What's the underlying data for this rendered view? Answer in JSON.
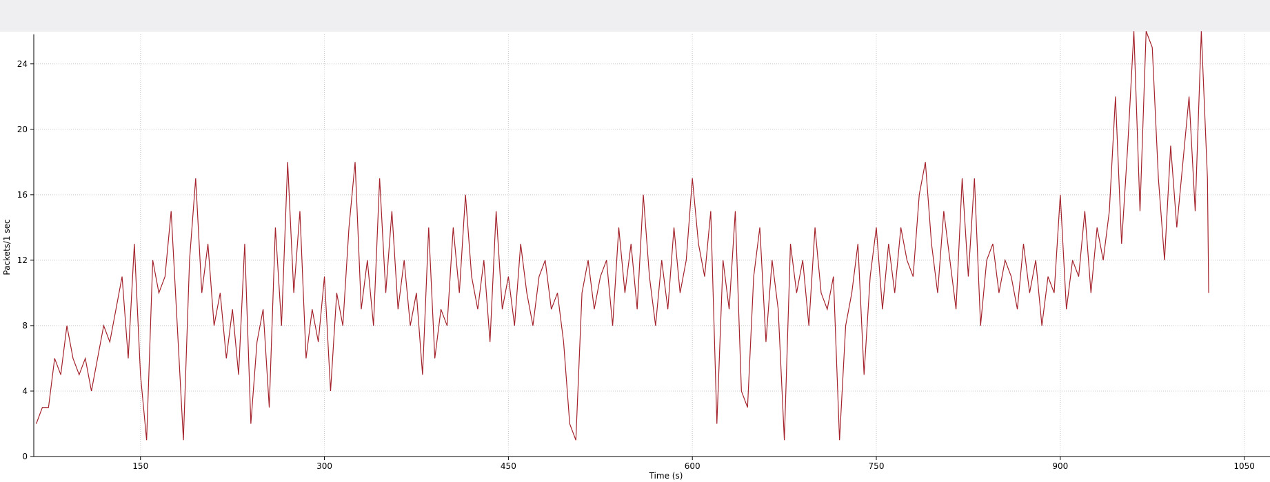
{
  "chart_data": {
    "type": "line",
    "xlabel": "Time (s)",
    "ylabel": "Packets/1 sec",
    "x": [
      65,
      70,
      75,
      80,
      85,
      90,
      95,
      100,
      105,
      110,
      115,
      120,
      125,
      130,
      135,
      140,
      145,
      150,
      155,
      160,
      165,
      170,
      175,
      180,
      185,
      190,
      195,
      200,
      205,
      210,
      215,
      220,
      225,
      230,
      235,
      240,
      245,
      250,
      255,
      260,
      265,
      270,
      275,
      280,
      285,
      290,
      295,
      300,
      305,
      310,
      315,
      320,
      325,
      330,
      335,
      340,
      345,
      350,
      355,
      360,
      365,
      370,
      375,
      380,
      385,
      390,
      395,
      400,
      405,
      410,
      415,
      420,
      425,
      430,
      435,
      440,
      445,
      450,
      455,
      460,
      465,
      470,
      475,
      480,
      485,
      490,
      495,
      500,
      505,
      510,
      515,
      520,
      525,
      530,
      535,
      540,
      545,
      550,
      555,
      560,
      565,
      570,
      575,
      580,
      585,
      590,
      595,
      600,
      605,
      610,
      615,
      620,
      625,
      630,
      635,
      640,
      645,
      650,
      655,
      660,
      665,
      670,
      675,
      680,
      685,
      690,
      695,
      700,
      705,
      710,
      715,
      720,
      725,
      730,
      735,
      740,
      745,
      750,
      755,
      760,
      765,
      770,
      775,
      780,
      785,
      790,
      795,
      800,
      805,
      810,
      815,
      820,
      825,
      830,
      835,
      840,
      845,
      850,
      855,
      860,
      865,
      870,
      875,
      880,
      885,
      890,
      895,
      900,
      905,
      910,
      915,
      920,
      925,
      930,
      935,
      940,
      945,
      950,
      955,
      960,
      965,
      970,
      975,
      980,
      985,
      990,
      995,
      1000,
      1005,
      1010,
      1015,
      1020,
      1021
    ],
    "values": [
      2,
      3,
      3,
      6,
      5,
      8,
      6,
      5,
      6,
      4,
      6,
      8,
      7,
      9,
      11,
      6,
      13,
      5,
      1,
      12,
      10,
      11,
      15,
      8,
      1,
      12,
      17,
      10,
      13,
      8,
      10,
      6,
      9,
      5,
      13,
      2,
      7,
      9,
      3,
      14,
      8,
      18,
      10,
      15,
      6,
      9,
      7,
      11,
      4,
      10,
      8,
      14,
      18,
      9,
      12,
      8,
      17,
      10,
      15,
      9,
      12,
      8,
      10,
      5,
      14,
      6,
      9,
      8,
      14,
      10,
      16,
      11,
      9,
      12,
      7,
      15,
      9,
      11,
      8,
      13,
      10,
      8,
      11,
      12,
      9,
      10,
      7,
      2,
      1,
      10,
      12,
      9,
      11,
      12,
      8,
      14,
      10,
      13,
      9,
      16,
      11,
      8,
      12,
      9,
      14,
      10,
      12,
      17,
      13,
      11,
      15,
      2,
      12,
      9,
      15,
      4,
      3,
      11,
      14,
      7,
      12,
      9,
      1,
      13,
      10,
      12,
      8,
      14,
      10,
      9,
      11,
      1,
      8,
      10,
      13,
      5,
      11,
      14,
      9,
      13,
      10,
      14,
      12,
      11,
      16,
      18,
      13,
      10,
      15,
      12,
      9,
      17,
      11,
      17,
      8,
      12,
      13,
      10,
      12,
      11,
      9,
      13,
      10,
      12,
      8,
      11,
      10,
      16,
      9,
      12,
      11,
      15,
      10,
      14,
      12,
      15,
      22,
      13,
      19,
      26,
      15,
      26,
      25,
      17,
      12,
      19,
      14,
      18,
      22,
      15,
      26,
      17,
      10
    ],
    "color": "#a3222b",
    "xlim": [
      63,
      1071
    ],
    "ylim": [
      0,
      25.8
    ],
    "xticks": [
      150,
      300,
      450,
      600,
      750,
      900,
      1050
    ],
    "yticks": [
      0,
      4,
      8,
      12,
      16,
      20,
      24
    ],
    "grid": true
  }
}
